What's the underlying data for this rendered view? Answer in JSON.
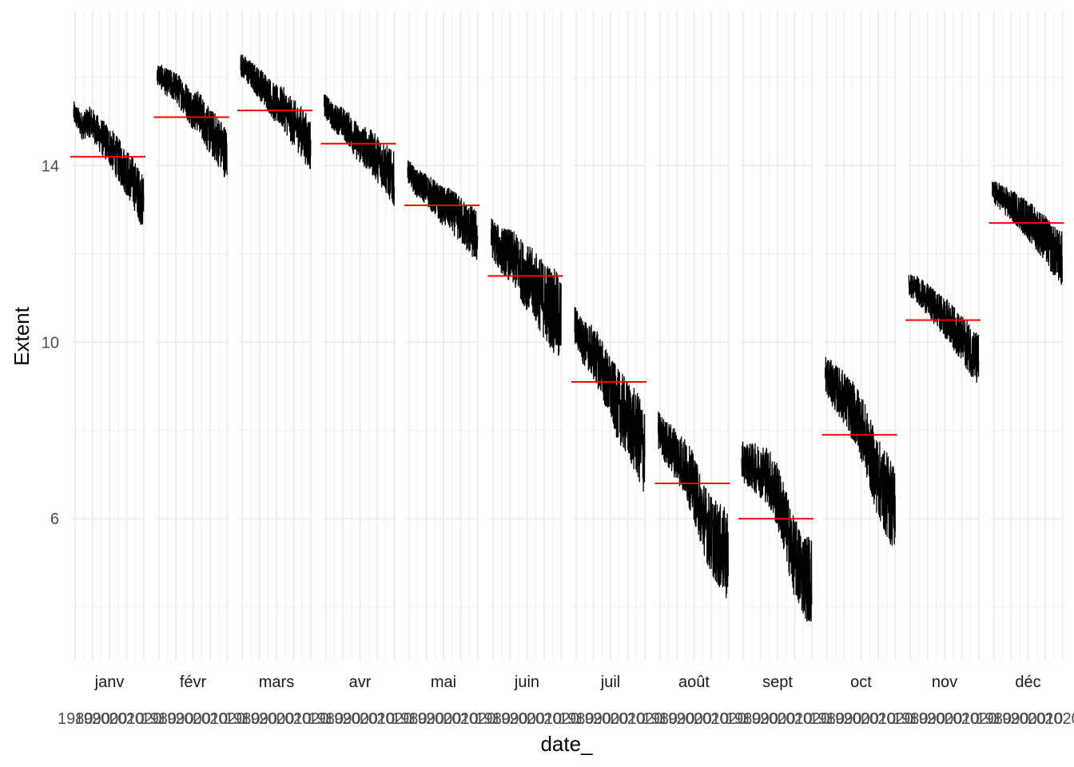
{
  "chart_data": {
    "type": "line",
    "xlabel": "date_",
    "ylabel": "Extent",
    "ylim": [
      2.8,
      17.5
    ],
    "yticks": [
      6,
      10,
      14
    ],
    "x_range": [
      1978,
      2020
    ],
    "x_tick_labels": [
      "1980",
      "1990",
      "2000",
      "2010",
      "2020"
    ],
    "grid": true,
    "colors": {
      "series": "#000000",
      "mean": "#ff0000",
      "grid": "#ebebeb"
    },
    "panels": [
      {
        "month": "janv",
        "mean": 14.2,
        "points": [
          [
            1979,
            15.2
          ],
          [
            1984,
            14.9
          ],
          [
            1989,
            15.0
          ],
          [
            1994,
            14.7
          ],
          [
            1999,
            14.5
          ],
          [
            2004,
            14.2
          ],
          [
            2009,
            13.9
          ],
          [
            2014,
            13.6
          ],
          [
            2019,
            13.2
          ]
        ]
      },
      {
        "month": "févr",
        "mean": 15.1,
        "points": [
          [
            1979,
            16.1
          ],
          [
            1984,
            15.9
          ],
          [
            1989,
            15.8
          ],
          [
            1994,
            15.6
          ],
          [
            1999,
            15.3
          ],
          [
            2004,
            15.2
          ],
          [
            2009,
            14.8
          ],
          [
            2014,
            14.6
          ],
          [
            2019,
            14.3
          ]
        ]
      },
      {
        "month": "mars",
        "mean": 15.25,
        "points": [
          [
            1979,
            16.3
          ],
          [
            1984,
            16.1
          ],
          [
            1989,
            15.9
          ],
          [
            1994,
            15.7
          ],
          [
            1999,
            15.4
          ],
          [
            2004,
            15.3
          ],
          [
            2009,
            15.0
          ],
          [
            2014,
            14.8
          ],
          [
            2019,
            14.5
          ]
        ]
      },
      {
        "month": "avr",
        "mean": 14.5,
        "points": [
          [
            1979,
            15.4
          ],
          [
            1984,
            15.1
          ],
          [
            1989,
            15.0
          ],
          [
            1994,
            14.8
          ],
          [
            1999,
            14.5
          ],
          [
            2004,
            14.4
          ],
          [
            2009,
            14.2
          ],
          [
            2014,
            14.0
          ],
          [
            2019,
            13.7
          ]
        ]
      },
      {
        "month": "mai",
        "mean": 13.1,
        "points": [
          [
            1979,
            13.9
          ],
          [
            1984,
            13.6
          ],
          [
            1989,
            13.5
          ],
          [
            1994,
            13.3
          ],
          [
            1999,
            13.1
          ],
          [
            2004,
            13.0
          ],
          [
            2009,
            12.8
          ],
          [
            2014,
            12.6
          ],
          [
            2019,
            12.4
          ]
        ]
      },
      {
        "month": "juin",
        "mean": 11.5,
        "points": [
          [
            1979,
            12.4
          ],
          [
            1984,
            12.1
          ],
          [
            1989,
            12.0
          ],
          [
            1994,
            11.8
          ],
          [
            1999,
            11.5
          ],
          [
            2004,
            11.3
          ],
          [
            2009,
            11.0
          ],
          [
            2014,
            10.8
          ],
          [
            2019,
            10.5
          ]
        ]
      },
      {
        "month": "juil",
        "mean": 9.1,
        "points": [
          [
            1979,
            10.4
          ],
          [
            1984,
            10.0
          ],
          [
            1989,
            9.8
          ],
          [
            1994,
            9.5
          ],
          [
            1999,
            9.0
          ],
          [
            2004,
            8.6
          ],
          [
            2009,
            8.3
          ],
          [
            2014,
            8.0
          ],
          [
            2019,
            7.6
          ]
        ]
      },
      {
        "month": "août",
        "mean": 6.8,
        "points": [
          [
            1979,
            8.0
          ],
          [
            1984,
            7.7
          ],
          [
            1989,
            7.5
          ],
          [
            1994,
            7.2
          ],
          [
            1999,
            6.8
          ],
          [
            2004,
            6.2
          ],
          [
            2009,
            5.7
          ],
          [
            2014,
            5.4
          ],
          [
            2019,
            5.2
          ]
        ]
      },
      {
        "month": "sept",
        "mean": 6.0,
        "points": [
          [
            1979,
            7.3
          ],
          [
            1984,
            7.2
          ],
          [
            1989,
            7.1
          ],
          [
            1994,
            7.0
          ],
          [
            1999,
            6.6
          ],
          [
            2004,
            6.0
          ],
          [
            2009,
            5.2
          ],
          [
            2014,
            4.8
          ],
          [
            2019,
            4.6
          ]
        ]
      },
      {
        "month": "oct",
        "mean": 7.9,
        "points": [
          [
            1979,
            9.3
          ],
          [
            1984,
            9.0
          ],
          [
            1989,
            8.8
          ],
          [
            1994,
            8.5
          ],
          [
            1999,
            8.2
          ],
          [
            2004,
            7.6
          ],
          [
            2009,
            7.0
          ],
          [
            2014,
            6.6
          ],
          [
            2019,
            6.3
          ]
        ]
      },
      {
        "month": "nov",
        "mean": 10.5,
        "points": [
          [
            1979,
            11.3
          ],
          [
            1984,
            11.2
          ],
          [
            1989,
            11.0
          ],
          [
            1994,
            10.8
          ],
          [
            1999,
            10.6
          ],
          [
            2004,
            10.4
          ],
          [
            2009,
            10.1
          ],
          [
            2014,
            9.9
          ],
          [
            2019,
            9.6
          ]
        ]
      },
      {
        "month": "déc",
        "mean": 12.7,
        "points": [
          [
            1979,
            13.4
          ],
          [
            1984,
            13.3
          ],
          [
            1989,
            13.1
          ],
          [
            1994,
            13.0
          ],
          [
            1999,
            12.8
          ],
          [
            2004,
            12.6
          ],
          [
            2009,
            12.4
          ],
          [
            2014,
            12.1
          ],
          [
            2019,
            11.9
          ]
        ]
      }
    ]
  }
}
